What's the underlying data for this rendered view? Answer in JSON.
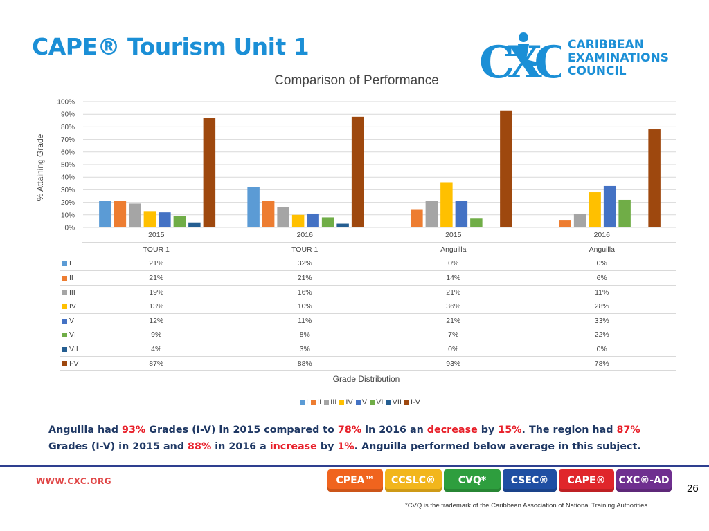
{
  "slide": {
    "title": "CAPE® Tourism Unit 1",
    "page_number": "26",
    "website": "WWW.CXC.ORG",
    "footnote": "*CVQ is the trademark of the Caribbean Association of National Training Authorities"
  },
  "logo": {
    "mark_text": "CXC",
    "line1": "CARIBBEAN",
    "line2": "EXAMINATIONS",
    "line3": "COUNCIL"
  },
  "badges": [
    {
      "label": "CPEA™",
      "color": "#f0641e"
    },
    {
      "label": "CCSLC®",
      "color": "#f2b61c"
    },
    {
      "label": "CVQ*",
      "color": "#2e9e3e"
    },
    {
      "label": "CSEC®",
      "color": "#1f4fa3"
    },
    {
      "label": "CAPE®",
      "color": "#e0262b"
    },
    {
      "label": "CXC®-AD",
      "color": "#6f2f8f"
    }
  ],
  "summary": {
    "s1": "Anguilla had ",
    "v1": "93%",
    "s2": " Grades (I-V) in 2015 compared to ",
    "v2": "78%",
    "s3": " in 2016 an ",
    "v3": "decrease",
    "s4": " by ",
    "v4": "15%",
    "s5": ". The region had ",
    "v5": "87%",
    "s6": " Grades (I-V) in 2015 and ",
    "v6": "88%",
    "s7": " in 2016 a ",
    "v7": "increase",
    "s8": " by ",
    "v8": "1%",
    "s9": ". Anguilla performed below average in this subject."
  },
  "chart_data": {
    "type": "bar",
    "title": "Comparison of Performance",
    "xlabel": "Grade Distribution",
    "ylabel": "% Attaining Grade",
    "ylim": [
      0,
      100
    ],
    "y_ticks": [
      "0%",
      "10%",
      "20%",
      "30%",
      "40%",
      "50%",
      "60%",
      "70%",
      "80%",
      "90%",
      "100%"
    ],
    "grid": true,
    "legend_position": "bottom",
    "categories": [
      {
        "year": "2015",
        "group": "TOUR 1"
      },
      {
        "year": "2016",
        "group": "TOUR 1"
      },
      {
        "year": "2015",
        "group": "Anguilla"
      },
      {
        "year": "2016",
        "group": "Anguilla"
      }
    ],
    "series": [
      {
        "name": "I",
        "color": "#5b9bd5",
        "values": [
          21,
          32,
          0,
          0
        ],
        "labels": [
          "21%",
          "32%",
          "0%",
          "0%"
        ]
      },
      {
        "name": "II",
        "color": "#ed7d31",
        "values": [
          21,
          21,
          14,
          6
        ],
        "labels": [
          "21%",
          "21%",
          "14%",
          "6%"
        ]
      },
      {
        "name": "III",
        "color": "#a5a5a5",
        "values": [
          19,
          16,
          21,
          11
        ],
        "labels": [
          "19%",
          "16%",
          "21%",
          "11%"
        ]
      },
      {
        "name": "IV",
        "color": "#ffc000",
        "values": [
          13,
          10,
          36,
          28
        ],
        "labels": [
          "13%",
          "10%",
          "36%",
          "28%"
        ]
      },
      {
        "name": "V",
        "color": "#4472c4",
        "values": [
          12,
          11,
          21,
          33
        ],
        "labels": [
          "12%",
          "11%",
          "21%",
          "33%"
        ]
      },
      {
        "name": "VI",
        "color": "#70ad47",
        "values": [
          9,
          8,
          7,
          22
        ],
        "labels": [
          "9%",
          "8%",
          "7%",
          "22%"
        ]
      },
      {
        "name": "VII",
        "color": "#255e91",
        "values": [
          4,
          3,
          0,
          0
        ],
        "labels": [
          "4%",
          "3%",
          "0%",
          "0%"
        ]
      },
      {
        "name": "I-V",
        "color": "#9e480e",
        "values": [
          87,
          88,
          93,
          78
        ],
        "labels": [
          "87%",
          "88%",
          "93%",
          "78%"
        ]
      }
    ]
  }
}
